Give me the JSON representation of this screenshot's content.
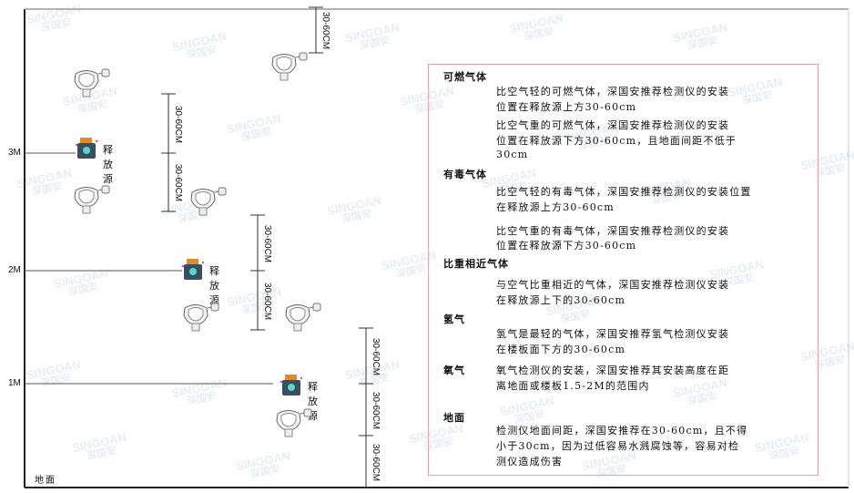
{
  "watermark": {
    "brand": "SINGOAN",
    "chinese": "深国安"
  },
  "levels": [
    "3M",
    "2M",
    "1M"
  ],
  "floor_label": "地面",
  "source_label": "释放源",
  "dimension_label": "30-60CM",
  "colors": {
    "frame_border": "#f0a0a8",
    "source_body": "#35505e",
    "source_cap": "#e08a2a",
    "source_face": "#5fd3c8"
  },
  "legend": {
    "sections": [
      {
        "title": "可燃气体",
        "paragraphs": [
          [
            "比空气轻的可燃气体，深国安推荐检测仪的安装",
            "位置在释放源上方30-60cm"
          ],
          [
            "比空气重的可燃气体，深国安推荐检测仪的安装",
            "位置在释放源下方30-60cm，且地面间距不低于",
            "30cm"
          ]
        ]
      },
      {
        "title": "有毒气体",
        "paragraphs": [
          [
            "比空气轻的有毒气体，深国安推荐检测仪的安装位置",
            "在释放源上方30-60cm"
          ],
          [
            "比空气重的有毒气体，深国安推荐检测仪的安装",
            "位置在释放源下方30-60cm"
          ]
        ]
      },
      {
        "title": "比重相近气体",
        "paragraphs": [
          [
            "与空气比重相近的气体，深国安推荐检测仪安装",
            "在释放源上下的30-60cm"
          ]
        ]
      },
      {
        "title": "氢气",
        "paragraphs": [
          [
            "氢气是最轻的气体，深国安推荐氢气检测仪安装",
            "在楼板面下方的30-60cm"
          ]
        ]
      },
      {
        "title": "氧气",
        "paragraphs": [
          [
            "氧气检测仪的安装，深国安推荐其安装高度在距",
            "离地面或楼板1.5-2M的范围内"
          ]
        ]
      },
      {
        "title": "地面",
        "paragraphs": [
          [
            "检测仪地面间距，深国安推荐在30-60cm，且不得",
            "小于30cm，因为过低容易水溅腐蚀等，容易对检",
            "测仪造成伤害"
          ]
        ]
      }
    ]
  }
}
